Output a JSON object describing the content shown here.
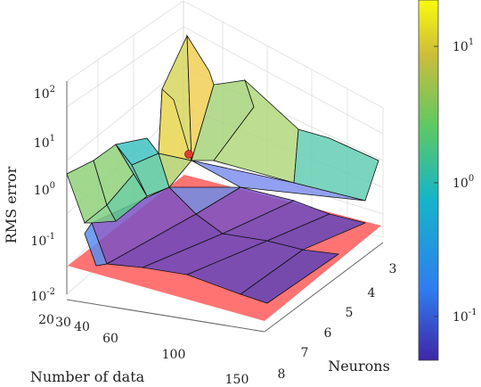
{
  "chart_data": {
    "type": "surface3d",
    "zlabel": "RMS error",
    "xlabel": "Number of data",
    "ylabel": "Neurons",
    "zscale": "log",
    "x_ticks": [
      "20",
      "30",
      "40",
      "60",
      "100",
      "150"
    ],
    "y_ticks": [
      "3",
      "4",
      "5",
      "6",
      "7",
      "8"
    ],
    "z_ticks": [
      {
        "base": "10",
        "exp": "-2"
      },
      {
        "base": "10",
        "exp": "-1"
      },
      {
        "base": "10",
        "exp": "0"
      },
      {
        "base": "10",
        "exp": "1"
      },
      {
        "base": "10",
        "exp": "2"
      }
    ],
    "colorbar_ticks": [
      {
        "base": "10",
        "exp": "1"
      },
      {
        "base": "10",
        "exp": "0"
      },
      {
        "base": "10",
        "exp": "-1"
      }
    ],
    "colormap": [
      "#3e26a8",
      "#2f7ef0",
      "#16b5c8",
      "#5ec962",
      "#cdbd3a",
      "#f9fb0e"
    ],
    "plane_color": "#ff5a5a",
    "highlight_point_color": "#e03b2f",
    "note": "surface of RMS error over number of data and neurons with a reference plane"
  }
}
